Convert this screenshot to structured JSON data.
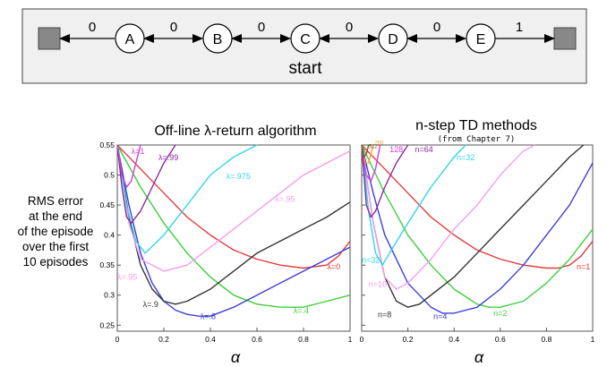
{
  "diagram": {
    "start_label": "start",
    "states": [
      "A",
      "B",
      "C",
      "D",
      "E"
    ],
    "rewards": [
      "0",
      "0",
      "0",
      "0",
      "0",
      "1"
    ]
  },
  "y_caption": [
    "RMS error",
    "at the end",
    "of the episode",
    "over the first",
    "10 episodes"
  ],
  "chart_data": [
    {
      "type": "line",
      "title": "Off-line λ-return algorithm",
      "xlabel": "α",
      "ylabel": "",
      "xlim": [
        0,
        1
      ],
      "ylim": [
        0.24,
        0.55
      ],
      "x_ticks": [
        "0",
        "0.2",
        "0.4",
        "0.6",
        "0.8",
        "1"
      ],
      "y_ticks": [
        "0.25",
        "0.3",
        "0.35",
        "0.4",
        "0.45",
        "0.5",
        "0.55"
      ],
      "grid": false,
      "series": [
        {
          "name": "λ=0",
          "color": "#e53a3a",
          "x": [
            0,
            0.1,
            0.2,
            0.3,
            0.4,
            0.5,
            0.6,
            0.7,
            0.8,
            0.9,
            0.95,
            1
          ],
          "y": [
            0.55,
            0.51,
            0.47,
            0.43,
            0.4,
            0.375,
            0.36,
            0.35,
            0.345,
            0.35,
            0.365,
            0.39
          ]
        },
        {
          "name": "λ=.4",
          "color": "#3ccf3c",
          "x": [
            0,
            0.1,
            0.2,
            0.3,
            0.4,
            0.5,
            0.6,
            0.7,
            0.8,
            0.9,
            1
          ],
          "y": [
            0.55,
            0.48,
            0.42,
            0.37,
            0.33,
            0.3,
            0.285,
            0.28,
            0.28,
            0.29,
            0.3
          ]
        },
        {
          "name": "λ=.8",
          "color": "#3d3ddb",
          "x": [
            0,
            0.05,
            0.1,
            0.15,
            0.2,
            0.25,
            0.3,
            0.35,
            0.4,
            0.5,
            0.6,
            0.7,
            0.8,
            0.9,
            1
          ],
          "y": [
            0.55,
            0.45,
            0.37,
            0.32,
            0.29,
            0.275,
            0.268,
            0.265,
            0.265,
            0.28,
            0.3,
            0.32,
            0.34,
            0.36,
            0.38
          ]
        },
        {
          "name": "λ=.9",
          "color": "#333333",
          "x": [
            0,
            0.05,
            0.1,
            0.15,
            0.2,
            0.25,
            0.3,
            0.4,
            0.5,
            0.6,
            0.7,
            0.8,
            0.9,
            1
          ],
          "y": [
            0.55,
            0.43,
            0.35,
            0.31,
            0.29,
            0.285,
            0.29,
            0.31,
            0.34,
            0.37,
            0.39,
            0.41,
            0.43,
            0.455
          ]
        },
        {
          "name": "λ=.95",
          "color": "#f49df0",
          "x": [
            0,
            0.05,
            0.1,
            0.2,
            0.3,
            0.4,
            0.5,
            0.6,
            0.7,
            0.8,
            0.9,
            1
          ],
          "y": [
            0.55,
            0.42,
            0.36,
            0.34,
            0.35,
            0.38,
            0.41,
            0.44,
            0.47,
            0.5,
            0.52,
            0.54
          ]
        },
        {
          "name": "λ=.975",
          "color": "#2fd6e8",
          "x": [
            0,
            0.04,
            0.08,
            0.12,
            0.2,
            0.3,
            0.4,
            0.5,
            0.6
          ],
          "y": [
            0.55,
            0.45,
            0.39,
            0.37,
            0.4,
            0.45,
            0.5,
            0.53,
            0.55
          ]
        },
        {
          "name": "λ=.99",
          "color": "#8a2a9a",
          "x": [
            0,
            0.02,
            0.04,
            0.06,
            0.1,
            0.15,
            0.2,
            0.25
          ],
          "y": [
            0.55,
            0.48,
            0.43,
            0.42,
            0.44,
            0.48,
            0.52,
            0.55
          ]
        },
        {
          "name": "λ=1",
          "color": "#d23bdc",
          "x": [
            0,
            0.02,
            0.04,
            0.06,
            0.08,
            0.1
          ],
          "y": [
            0.55,
            0.5,
            0.48,
            0.49,
            0.52,
            0.55
          ]
        }
      ]
    },
    {
      "type": "line",
      "title": "n-step TD methods",
      "subtitle": "(from Chapter 7)",
      "xlabel": "α",
      "ylabel": "",
      "xlim": [
        0,
        1
      ],
      "ylim": [
        0.24,
        0.55
      ],
      "x_ticks": [
        "0",
        "0.2",
        "0.4",
        "0.6",
        "0.8",
        "1"
      ],
      "y_ticks": [],
      "grid": false,
      "series": [
        {
          "name": "n=1",
          "color": "#e53a3a",
          "x": [
            0,
            0.1,
            0.2,
            0.3,
            0.4,
            0.5,
            0.6,
            0.7,
            0.8,
            0.85,
            0.9,
            0.95,
            1
          ],
          "y": [
            0.55,
            0.51,
            0.47,
            0.43,
            0.4,
            0.375,
            0.36,
            0.35,
            0.345,
            0.345,
            0.35,
            0.365,
            0.39
          ]
        },
        {
          "name": "n=2",
          "color": "#3ccf3c",
          "x": [
            0,
            0.1,
            0.2,
            0.3,
            0.4,
            0.5,
            0.55,
            0.6,
            0.7,
            0.8,
            0.9,
            1
          ],
          "y": [
            0.55,
            0.47,
            0.4,
            0.35,
            0.31,
            0.285,
            0.28,
            0.28,
            0.29,
            0.32,
            0.36,
            0.41
          ]
        },
        {
          "name": "n=4",
          "color": "#3d3ddb",
          "x": [
            0,
            0.05,
            0.1,
            0.2,
            0.3,
            0.35,
            0.4,
            0.5,
            0.6,
            0.7,
            0.8,
            0.9,
            1
          ],
          "y": [
            0.55,
            0.47,
            0.4,
            0.32,
            0.28,
            0.27,
            0.27,
            0.28,
            0.31,
            0.35,
            0.4,
            0.45,
            0.52
          ]
        },
        {
          "name": "n=8",
          "color": "#333333",
          "x": [
            0,
            0.05,
            0.1,
            0.15,
            0.2,
            0.25,
            0.3,
            0.4,
            0.5,
            0.6,
            0.7,
            0.8,
            0.9,
            0.96
          ],
          "y": [
            0.55,
            0.42,
            0.33,
            0.29,
            0.28,
            0.285,
            0.3,
            0.33,
            0.37,
            0.41,
            0.45,
            0.49,
            0.53,
            0.55
          ]
        },
        {
          "name": "n=16",
          "color": "#f49df0",
          "x": [
            0,
            0.05,
            0.1,
            0.15,
            0.2,
            0.3,
            0.4,
            0.5,
            0.6,
            0.7,
            0.75
          ],
          "y": [
            0.55,
            0.42,
            0.33,
            0.31,
            0.32,
            0.36,
            0.41,
            0.45,
            0.5,
            0.54,
            0.55
          ]
        },
        {
          "name": "n=32",
          "color": "#2fd6e8",
          "x": [
            0,
            0.03,
            0.06,
            0.09,
            0.12,
            0.2,
            0.3,
            0.4,
            0.45
          ],
          "y": [
            0.55,
            0.44,
            0.37,
            0.35,
            0.37,
            0.42,
            0.48,
            0.53,
            0.55
          ]
        },
        {
          "name": "n=64",
          "color": "#8a2a9a",
          "x": [
            0,
            0.02,
            0.04,
            0.06,
            0.1,
            0.15,
            0.2
          ],
          "y": [
            0.55,
            0.45,
            0.43,
            0.44,
            0.48,
            0.52,
            0.55
          ]
        },
        {
          "name": "128",
          "color": "#d23bdc",
          "x": [
            0,
            0.02,
            0.04,
            0.06,
            0.08
          ],
          "y": [
            0.55,
            0.5,
            0.49,
            0.51,
            0.55
          ]
        },
        {
          "name": "256",
          "color": "#f2a33a",
          "x": [
            0,
            0.015,
            0.03,
            0.05
          ],
          "y": [
            0.55,
            0.52,
            0.52,
            0.55
          ]
        },
        {
          "name": "512",
          "color": "#8b5a2b",
          "x": [
            0,
            0.01,
            0.02,
            0.03
          ],
          "y": [
            0.55,
            0.53,
            0.535,
            0.55
          ]
        }
      ]
    }
  ]
}
